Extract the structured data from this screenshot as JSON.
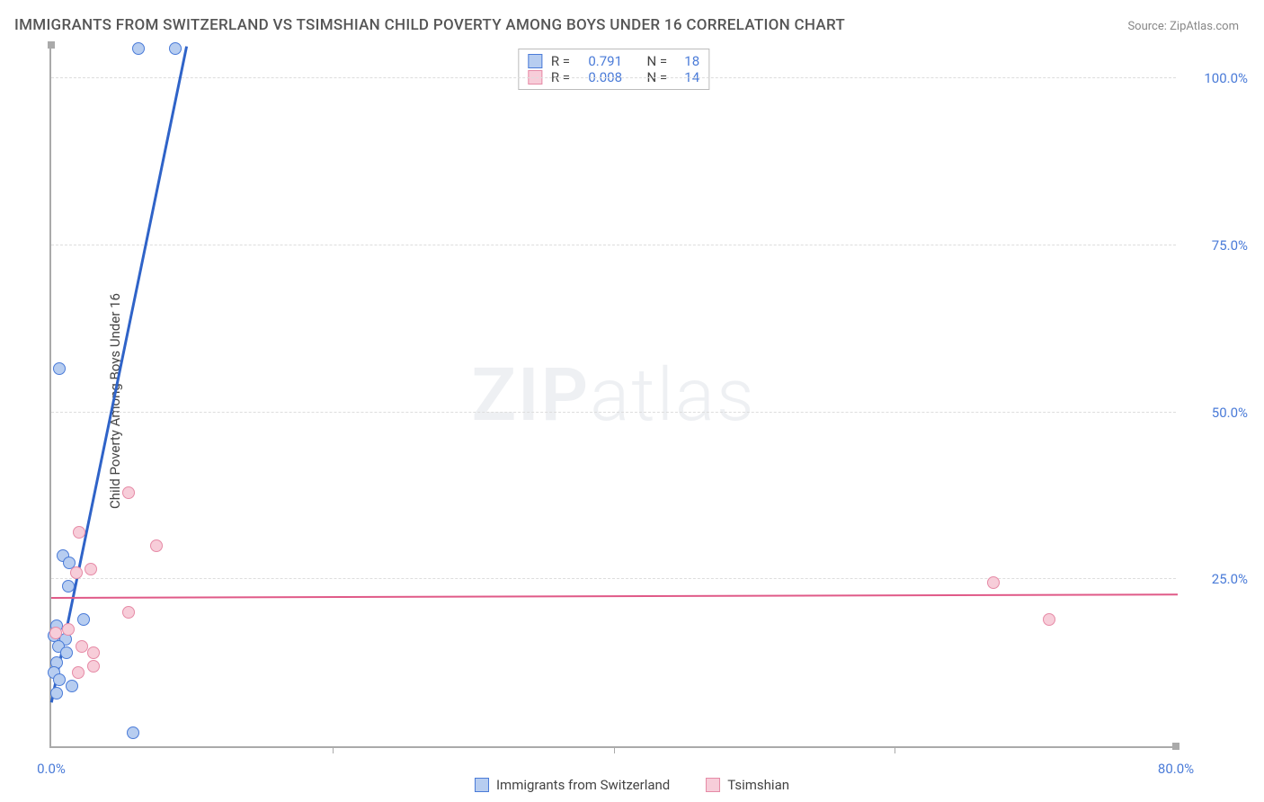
{
  "title": "IMMIGRANTS FROM SWITZERLAND VS TSIMSHIAN CHILD POVERTY AMONG BOYS UNDER 16 CORRELATION CHART",
  "source_label": "Source:",
  "source_name": "ZipAtlas.com",
  "watermark_bold": "ZIP",
  "watermark_light": "atlas",
  "chart": {
    "type": "scatter",
    "ylabel": "Child Poverty Among Boys Under 16",
    "xlim": [
      0,
      80
    ],
    "ylim": [
      0,
      105
    ],
    "xtick_labels": [
      "0.0%",
      "80.0%"
    ],
    "xtick_positions": [
      0,
      80
    ],
    "x_minor_ticks": [
      20,
      40,
      60
    ],
    "ytick_labels": [
      "25.0%",
      "50.0%",
      "75.0%",
      "100.0%"
    ],
    "ytick_positions": [
      25,
      50,
      75,
      100
    ],
    "grid_color": "#dddddd",
    "axis_color": "#aaaaaa",
    "tick_label_color": "#4a7bd8",
    "background_color": "#ffffff",
    "series": [
      {
        "name": "Immigrants from Switzerland",
        "stroke": "#4a7bd8",
        "fill": "#b7cdf0",
        "marker_radius": 7,
        "r_value": "0.791",
        "n_value": "18",
        "r_label": "R =",
        "n_label": "N =",
        "trend": {
          "x1": 0,
          "y1": 7,
          "x2": 9.6,
          "y2": 105,
          "color": "#2f63c8",
          "width": 2.5
        },
        "points": [
          {
            "x": 6.2,
            "y": 104.5
          },
          {
            "x": 8.8,
            "y": 104.5
          },
          {
            "x": 0.6,
            "y": 56.5
          },
          {
            "x": 0.8,
            "y": 28.5
          },
          {
            "x": 1.3,
            "y": 27.5
          },
          {
            "x": 1.2,
            "y": 24.0
          },
          {
            "x": 2.3,
            "y": 19.0
          },
          {
            "x": 0.4,
            "y": 18.0
          },
          {
            "x": 0.2,
            "y": 16.5
          },
          {
            "x": 1.0,
            "y": 16.0
          },
          {
            "x": 0.5,
            "y": 15.0
          },
          {
            "x": 1.1,
            "y": 14.0
          },
          {
            "x": 0.4,
            "y": 12.5
          },
          {
            "x": 0.2,
            "y": 11.0
          },
          {
            "x": 0.6,
            "y": 10.0
          },
          {
            "x": 1.5,
            "y": 9.0
          },
          {
            "x": 0.4,
            "y": 8.0
          },
          {
            "x": 5.8,
            "y": 2.0
          }
        ]
      },
      {
        "name": "Tsimshian",
        "stroke": "#e68aa6",
        "fill": "#f7cdd9",
        "marker_radius": 7,
        "r_value": "0.008",
        "n_value": "14",
        "r_label": "R =",
        "n_label": "N =",
        "trend": {
          "x1": 0,
          "y1": 22.5,
          "x2": 80,
          "y2": 23.0,
          "color": "#e05a88",
          "width": 2
        },
        "points": [
          {
            "x": 5.5,
            "y": 38.0
          },
          {
            "x": 2.0,
            "y": 32.0
          },
          {
            "x": 7.5,
            "y": 30.0
          },
          {
            "x": 2.8,
            "y": 26.5
          },
          {
            "x": 1.8,
            "y": 26.0
          },
          {
            "x": 67.0,
            "y": 24.5
          },
          {
            "x": 5.5,
            "y": 20.0
          },
          {
            "x": 71.0,
            "y": 19.0
          },
          {
            "x": 1.2,
            "y": 17.5
          },
          {
            "x": 0.3,
            "y": 17.0
          },
          {
            "x": 2.2,
            "y": 15.0
          },
          {
            "x": 3.0,
            "y": 14.0
          },
          {
            "x": 3.0,
            "y": 12.0
          },
          {
            "x": 1.9,
            "y": 11.0
          }
        ]
      }
    ]
  }
}
